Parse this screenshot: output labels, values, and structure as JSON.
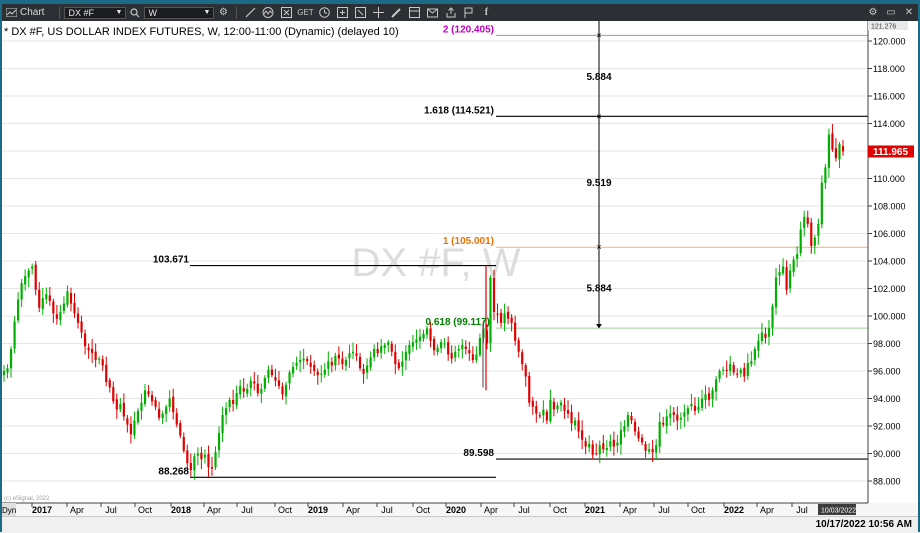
{
  "toolbar": {
    "app_label": "Chart",
    "symbol_value": "DX #F",
    "interval_value": "W",
    "icons": [
      "chart-icon",
      "symbol-search-icon",
      "symbol-dropdown-icon",
      "interval-dropdown-icon",
      "settings-icon",
      "draw-icon",
      "study-icon",
      "indicator-icon",
      "get-icon",
      "clock-icon",
      "zoom-icon",
      "cursor-icon",
      "crosshair-icon",
      "pencil-icon",
      "layout-icon",
      "alert-icon",
      "share-icon",
      "flag-icon",
      "facebook-icon"
    ],
    "get_label": "GET",
    "right_icons": [
      "toolbar-settings-icon",
      "window-minimize-icon",
      "window-close-icon"
    ]
  },
  "chart": {
    "watermark": "DX #F, W",
    "timestamp_label": "10/17/2022 10:56 AM",
    "copyright": "(c) eSignal, 2022",
    "cursor_date": "10/03/2022",
    "top_price": "121.276",
    "dyn_label": "Dyn"
  },
  "chart_data": {
    "type": "candlestick",
    "title": "* DX #F, US DOLLAR INDEX FUTURES, W, 12:00-11:00 (Dynamic) (delayed 10)",
    "y_axis_ticks": [
      "120.000",
      "118.000",
      "116.000",
      "114.000",
      "112.000",
      "110.000",
      "108.000",
      "106.000",
      "104.000",
      "102.000",
      "100.000",
      "98.000",
      "96.000",
      "94.000",
      "92.000",
      "90.000",
      "88.000"
    ],
    "ylim": [
      87.0,
      121.5
    ],
    "x_axis_ticks": [
      "2017",
      "Apr",
      "Jul",
      "Oct",
      "2018",
      "Apr",
      "Jul",
      "Oct",
      "2019",
      "Apr",
      "Jul",
      "Oct",
      "2020",
      "Apr",
      "Jul",
      "Oct",
      "2021",
      "Apr",
      "Jul",
      "Oct",
      "2022",
      "Apr",
      "Jul"
    ],
    "last_price": "111.965",
    "last_price_color": "#e00000",
    "up_color": "#00b000",
    "down_color": "#e00000",
    "weekly_closes_approx": [
      96.0,
      96.2,
      97.6,
      99.6,
      101.2,
      102.4,
      102.9,
      103.3,
      103.6,
      101.9,
      100.6,
      101.3,
      101.6,
      101.1,
      100.2,
      99.8,
      100.3,
      100.9,
      101.8,
      100.9,
      100.2,
      99.5,
      98.8,
      97.8,
      97.5,
      97.3,
      96.8,
      96.9,
      96.4,
      95.2,
      94.8,
      93.8,
      93.2,
      93.6,
      92.7,
      92.1,
      91.4,
      92.4,
      93.1,
      93.7,
      94.6,
      94.3,
      93.8,
      93.4,
      92.6,
      92.9,
      93.4,
      94.0,
      93.0,
      92.1,
      91.3,
      90.2,
      89.3,
      88.8,
      89.8,
      90.0,
      89.6,
      89.9,
      89.0,
      88.9,
      90.1,
      91.5,
      92.8,
      93.3,
      93.9,
      93.6,
      94.4,
      94.9,
      94.5,
      94.7,
      95.3,
      95.1,
      94.4,
      94.7,
      95.5,
      96.1,
      95.7,
      95.3,
      94.9,
      94.3,
      95.0,
      95.9,
      96.3,
      96.6,
      96.8,
      96.9,
      96.7,
      96.3,
      96.0,
      95.7,
      95.8,
      96.1,
      96.7,
      96.4,
      97.1,
      96.9,
      96.5,
      96.8,
      97.3,
      97.4,
      97.1,
      96.2,
      95.8,
      96.4,
      97.0,
      97.6,
      97.3,
      97.8,
      97.9,
      98.1,
      97.4,
      96.5,
      96.2,
      96.7,
      97.4,
      97.9,
      98.1,
      98.3,
      98.5,
      98.7,
      99.1,
      98.2,
      97.5,
      97.7,
      98.1,
      98.0,
      97.2,
      96.9,
      97.4,
      97.6,
      97.9,
      97.6,
      97.3,
      96.8,
      97.2,
      98.4,
      99.1,
      98.0,
      102.8,
      100.3,
      100.1,
      99.5,
      100.2,
      99.8,
      99.5,
      98.2,
      97.4,
      96.5,
      95.6,
      93.7,
      93.4,
      92.9,
      92.7,
      93.2,
      92.4,
      93.9,
      93.2,
      93.5,
      93.7,
      93.1,
      92.9,
      92.2,
      92.4,
      91.6,
      91.0,
      90.5,
      90.7,
      89.9,
      90.0,
      90.6,
      90.3,
      90.4,
      90.9,
      90.5,
      90.8,
      91.7,
      92.0,
      92.8,
      92.4,
      91.6,
      91.1,
      90.8,
      90.2,
      90.3,
      90.1,
      90.6,
      92.3,
      92.1,
      92.7,
      92.9,
      92.8,
      92.4,
      92.6,
      93.0,
      93.3,
      93.6,
      93.1,
      93.4,
      94.0,
      94.3,
      93.9,
      94.6,
      95.4,
      96.0,
      96.1,
      96.0,
      96.5,
      95.9,
      95.8,
      96.1,
      95.6,
      96.6,
      96.7,
      97.6,
      98.2,
      98.8,
      98.4,
      99.1,
      100.7,
      102.8,
      103.2,
      103.6,
      101.9,
      103.3,
      104.1,
      104.5,
      106.3,
      107.2,
      106.7,
      105.1,
      105.7,
      106.7,
      109.7,
      110.8,
      113.2,
      112.1,
      111.5,
      112.5,
      111.97
    ],
    "annotations": [
      {
        "label": "103.671",
        "value": 103.671
      },
      {
        "label": "88.268",
        "value": 88.268
      },
      {
        "label": "89.598",
        "value": 89.598
      },
      {
        "label": "2 (120.405)",
        "value": 120.405,
        "color": "#c000c0"
      },
      {
        "label": "1.618 (114.521)",
        "value": 114.521,
        "color": "#000000"
      },
      {
        "label": "1 (105.001)",
        "value": 105.001,
        "color": "#f07000"
      },
      {
        "label": "0.618 (99.117)",
        "value": 99.117,
        "color": "#008000"
      }
    ],
    "measurements": [
      "5.884",
      "9.519",
      "5.884"
    ]
  }
}
